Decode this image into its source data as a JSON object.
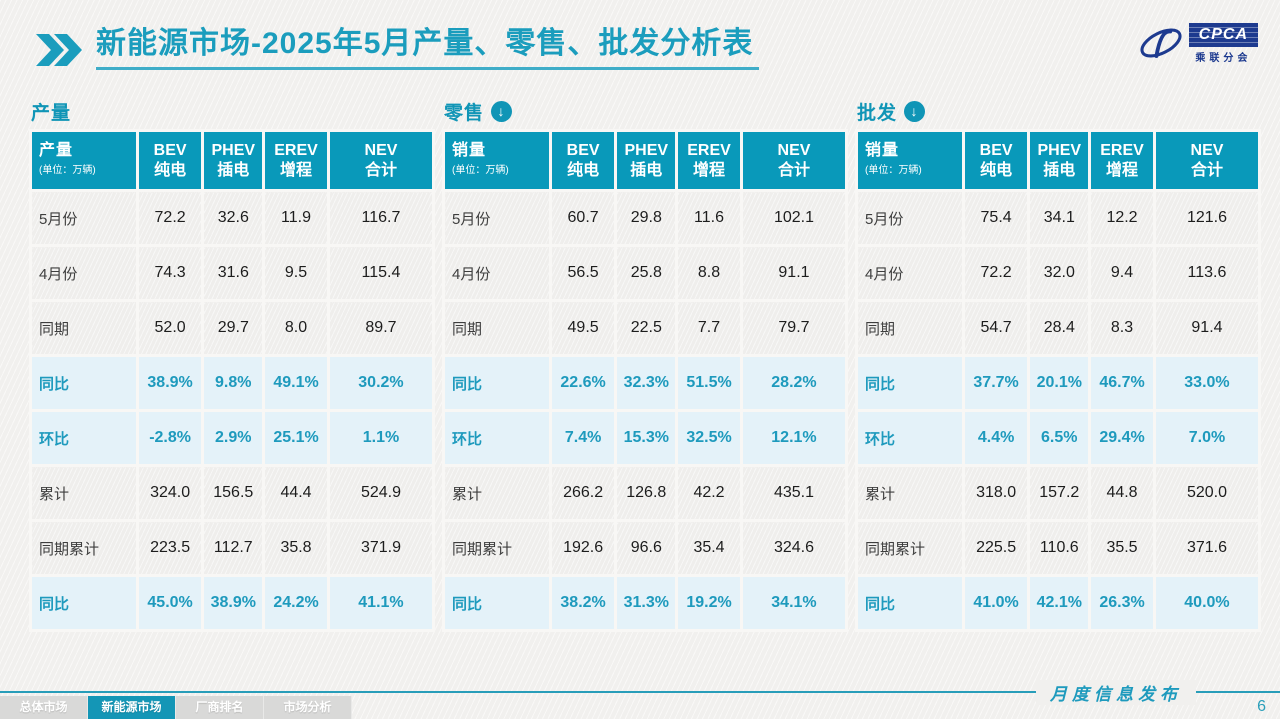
{
  "title": {
    "emphasis": "新能源市场",
    "rest": "-2025年5月产量、零售、批发分析表"
  },
  "logo": {
    "name": "CPCA",
    "sub": "乘联分会",
    "watermark_big": "CPCA",
    "watermark_small": "乘联分会"
  },
  "colors": {
    "accent_teal": "#1b9dbd",
    "table_header_bg": "#0999ba",
    "highlight_row_bg": "#e4f2f9",
    "highlight_text": "#1e9abd",
    "logo_blue": "#1d3a8f",
    "inactive_tab_bg": "#d9d9d8",
    "active_tab_bg": "#1496b6"
  },
  "tables": [
    {
      "section_label": "产量",
      "has_arrow": false,
      "first_header": {
        "label": "产量",
        "unit": "(单位：万辆)"
      },
      "columns": [
        {
          "en": "BEV",
          "zh": "纯电"
        },
        {
          "en": "PHEV",
          "zh": "插电"
        },
        {
          "en": "EREV",
          "zh": "增程"
        },
        {
          "en": "NEV",
          "zh": "合计"
        }
      ],
      "rows": [
        {
          "label": "5月份",
          "type": "normal",
          "values": [
            "72.2",
            "32.6",
            "11.9",
            "116.7"
          ]
        },
        {
          "label": "4月份",
          "type": "normal",
          "values": [
            "74.3",
            "31.6",
            "9.5",
            "115.4"
          ]
        },
        {
          "label": "同期",
          "type": "normal",
          "values": [
            "52.0",
            "29.7",
            "8.0",
            "89.7"
          ]
        },
        {
          "label": "同比",
          "type": "highlight",
          "values": [
            "38.9%",
            "9.8%",
            "49.1%",
            "30.2%"
          ]
        },
        {
          "label": "环比",
          "type": "highlight",
          "values": [
            "-2.8%",
            "2.9%",
            "25.1%",
            "1.1%"
          ]
        },
        {
          "label": "累计",
          "type": "normal",
          "values": [
            "324.0",
            "156.5",
            "44.4",
            "524.9"
          ]
        },
        {
          "label": "同期累计",
          "type": "normal",
          "values": [
            "223.5",
            "112.7",
            "35.8",
            "371.9"
          ]
        },
        {
          "label": "同比",
          "type": "highlight",
          "values": [
            "45.0%",
            "38.9%",
            "24.2%",
            "41.1%"
          ]
        }
      ]
    },
    {
      "section_label": "零售",
      "has_arrow": true,
      "first_header": {
        "label": "销量",
        "unit": "(单位：万辆)"
      },
      "columns": [
        {
          "en": "BEV",
          "zh": "纯电"
        },
        {
          "en": "PHEV",
          "zh": "插电"
        },
        {
          "en": "EREV",
          "zh": "增程"
        },
        {
          "en": "NEV",
          "zh": "合计"
        }
      ],
      "rows": [
        {
          "label": "5月份",
          "type": "normal",
          "values": [
            "60.7",
            "29.8",
            "11.6",
            "102.1"
          ]
        },
        {
          "label": "4月份",
          "type": "normal",
          "values": [
            "56.5",
            "25.8",
            "8.8",
            "91.1"
          ]
        },
        {
          "label": "同期",
          "type": "normal",
          "values": [
            "49.5",
            "22.5",
            "7.7",
            "79.7"
          ]
        },
        {
          "label": "同比",
          "type": "highlight",
          "values": [
            "22.6%",
            "32.3%",
            "51.5%",
            "28.2%"
          ]
        },
        {
          "label": "环比",
          "type": "highlight",
          "values": [
            "7.4%",
            "15.3%",
            "32.5%",
            "12.1%"
          ]
        },
        {
          "label": "累计",
          "type": "normal",
          "values": [
            "266.2",
            "126.8",
            "42.2",
            "435.1"
          ]
        },
        {
          "label": "同期累计",
          "type": "normal",
          "values": [
            "192.6",
            "96.6",
            "35.4",
            "324.6"
          ]
        },
        {
          "label": "同比",
          "type": "highlight",
          "values": [
            "38.2%",
            "31.3%",
            "19.2%",
            "34.1%"
          ]
        }
      ]
    },
    {
      "section_label": "批发",
      "has_arrow": true,
      "first_header": {
        "label": "销量",
        "unit": "(单位：万辆)"
      },
      "columns": [
        {
          "en": "BEV",
          "zh": "纯电"
        },
        {
          "en": "PHEV",
          "zh": "插电"
        },
        {
          "en": "EREV",
          "zh": "增程"
        },
        {
          "en": "NEV",
          "zh": "合计"
        }
      ],
      "rows": [
        {
          "label": "5月份",
          "type": "normal",
          "values": [
            "75.4",
            "34.1",
            "12.2",
            "121.6"
          ]
        },
        {
          "label": "4月份",
          "type": "normal",
          "values": [
            "72.2",
            "32.0",
            "9.4",
            "113.6"
          ]
        },
        {
          "label": "同期",
          "type": "normal",
          "values": [
            "54.7",
            "28.4",
            "8.3",
            "91.4"
          ]
        },
        {
          "label": "同比",
          "type": "highlight",
          "values": [
            "37.7%",
            "20.1%",
            "46.7%",
            "33.0%"
          ]
        },
        {
          "label": "环比",
          "type": "highlight",
          "values": [
            "4.4%",
            "6.5%",
            "29.4%",
            "7.0%"
          ]
        },
        {
          "label": "累计",
          "type": "normal",
          "values": [
            "318.0",
            "157.2",
            "44.8",
            "520.0"
          ]
        },
        {
          "label": "同期累计",
          "type": "normal",
          "values": [
            "225.5",
            "110.6",
            "35.5",
            "371.6"
          ]
        },
        {
          "label": "同比",
          "type": "highlight",
          "values": [
            "41.0%",
            "42.1%",
            "26.3%",
            "40.0%"
          ]
        }
      ]
    }
  ],
  "footer": {
    "publish_label": "月度信息发布",
    "page_number": "6",
    "tabs": [
      {
        "label": "总体市场",
        "active": false
      },
      {
        "label": "新能源市场",
        "active": true
      },
      {
        "label": "厂商排名",
        "active": false
      },
      {
        "label": "市场分析",
        "active": false
      }
    ]
  },
  "icons": {
    "chevron_right_double": "chevron-right-double",
    "arrow_down_circle": "arrow-down-circle"
  }
}
